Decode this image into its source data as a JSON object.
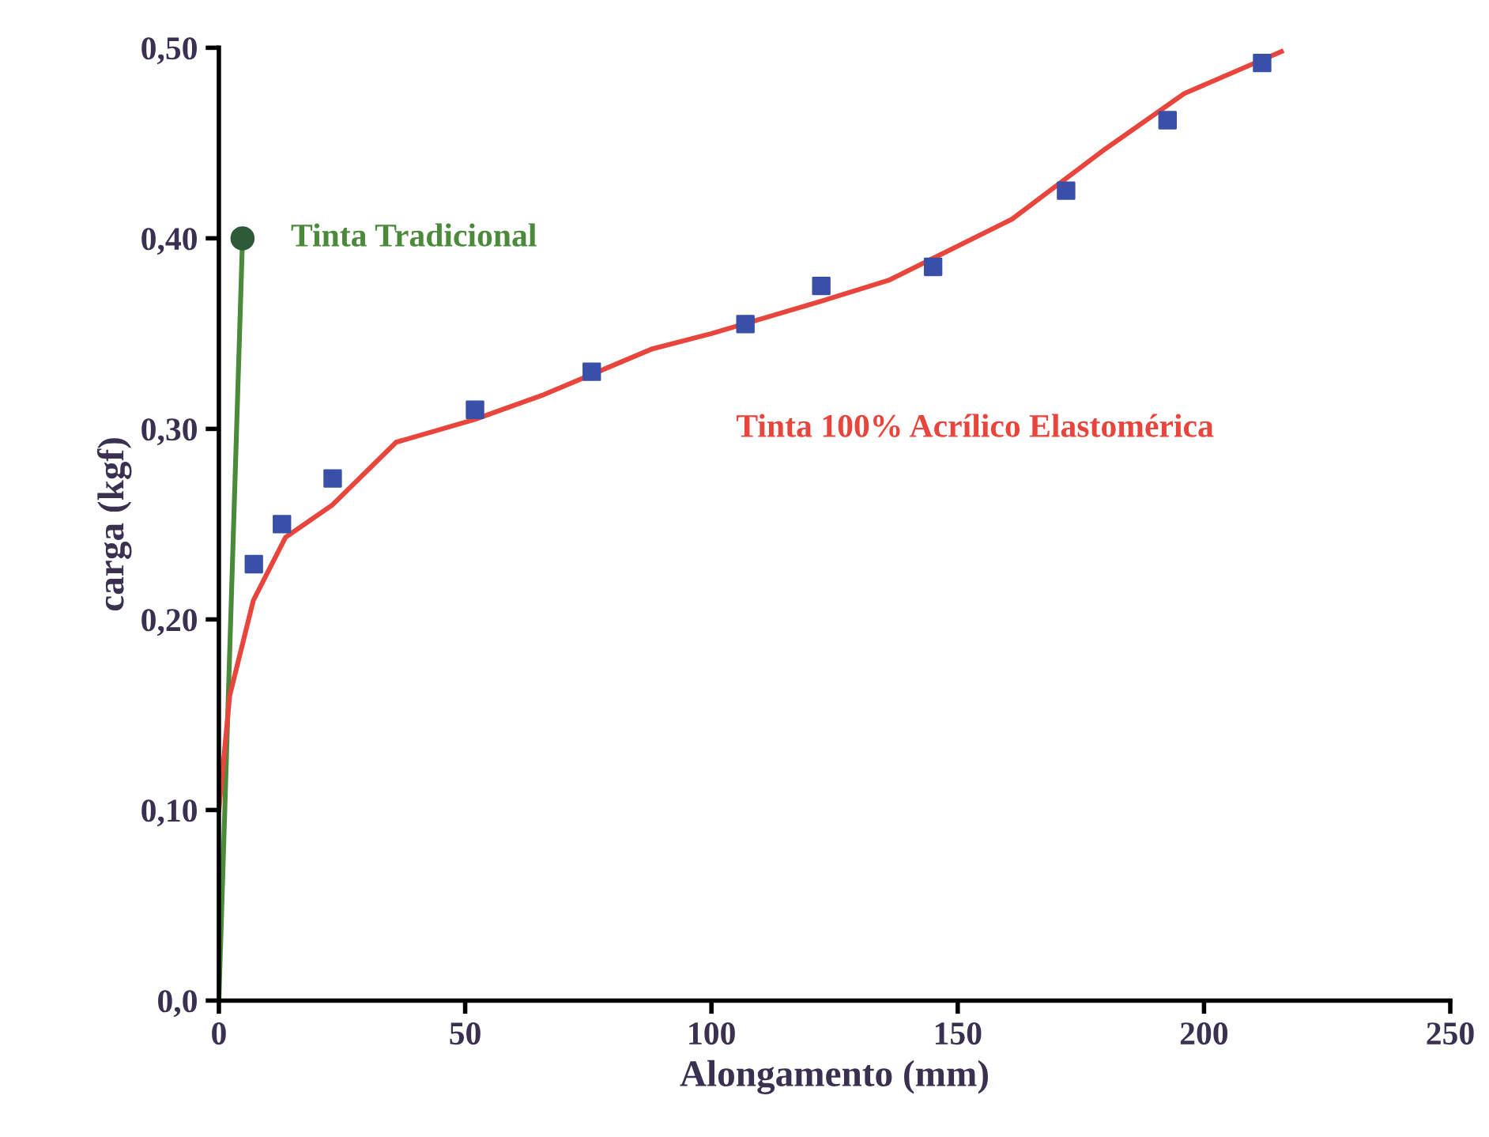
{
  "chart_data": {
    "type": "line",
    "xlabel": "Alongamento (mm)",
    "ylabel": "carga (kgf)",
    "xlim": [
      0,
      250
    ],
    "xticks": [
      0,
      50,
      100,
      150,
      200,
      250
    ],
    "ylim": [
      0,
      0.5
    ],
    "yticks": [
      {
        "value": 0,
        "label": "0,0"
      },
      {
        "value": 0.1,
        "label": "0,10"
      },
      {
        "value": 0.2,
        "label": "0,20"
      },
      {
        "value": 0.3,
        "label": "0,30"
      },
      {
        "value": 0.4,
        "label": "0,40"
      },
      {
        "value": 0.5,
        "label": "0,50"
      }
    ],
    "grid": false,
    "legend": false,
    "series": [
      {
        "name": "Tinta Tradicional",
        "color": "#4a8a3a",
        "marker": "circle",
        "x": [
          0,
          4.8
        ],
        "values": [
          0,
          0.4
        ]
      },
      {
        "type": "scatter",
        "color": "#3a4fa8",
        "marker": "square",
        "x": [
          7.1,
          12.8,
          23.1,
          52,
          75.7,
          106.9,
          122.3,
          145,
          172,
          192.6,
          211.8
        ],
        "values": [
          0.229,
          0.25,
          0.274,
          0.31,
          0.33,
          0.355,
          0.375,
          0.385,
          0.425,
          0.462,
          0.492
        ]
      },
      {
        "name": "Tinta 100% Acrílico Elastomérica",
        "color": "#e8453c",
        "marker": "none",
        "x": [
          0,
          2.2,
          7,
          13.5,
          23,
          36,
          52,
          66,
          88,
          100,
          122.3,
          136,
          161,
          180,
          196,
          215.7
        ],
        "values": [
          0.1,
          0.16,
          0.21,
          0.243,
          0.26,
          0.293,
          0.305,
          0.318,
          0.342,
          0.35,
          0.367,
          0.378,
          0.41,
          0.447,
          0.476,
          0.498
        ]
      }
    ]
  }
}
